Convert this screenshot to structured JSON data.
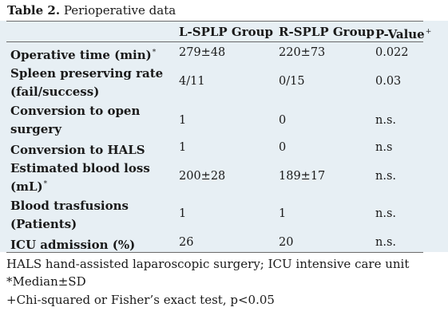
{
  "caption": {
    "label": "Table 2.",
    "title": "Perioperative data"
  },
  "table": {
    "headers": [
      "L-SPLP Group",
      "R-SPLP Group",
      "P-Value"
    ],
    "pvalue_marker": "+",
    "rows": [
      {
        "label": "Operative time (min)",
        "marker": "*",
        "l_splp": "279±48",
        "r_splp": "220±73",
        "p": "0.022"
      },
      {
        "label": "Spleen preserving rate (fail/success)",
        "marker": "",
        "l_splp": "4/11",
        "r_splp": "0/15",
        "p": "0.03"
      },
      {
        "label": "Conversion to open surgery",
        "marker": "",
        "l_splp": "1",
        "r_splp": "0",
        "p": "n.s."
      },
      {
        "label": "Conversion to HALS",
        "marker": "",
        "l_splp": "1",
        "r_splp": "0",
        "p": "n.s"
      },
      {
        "label": "Estimated blood loss (mL)",
        "marker": "*",
        "l_splp": "200±28",
        "r_splp": "189±17",
        "p": "n.s."
      },
      {
        "label": "Blood trasfusions (Patients)",
        "marker": "",
        "l_splp": "1",
        "r_splp": "1",
        "p": "n.s."
      },
      {
        "label": "ICU admission (%)",
        "marker": "",
        "l_splp": "26",
        "r_splp": "20",
        "p": "n.s."
      }
    ]
  },
  "footnotes": [
    "HALS hand-assisted laparoscopic surgery; ICU intensive care unit",
    "*Median±SD",
    "+Chi-squared or Fisher’s exact test, p<0.05"
  ]
}
